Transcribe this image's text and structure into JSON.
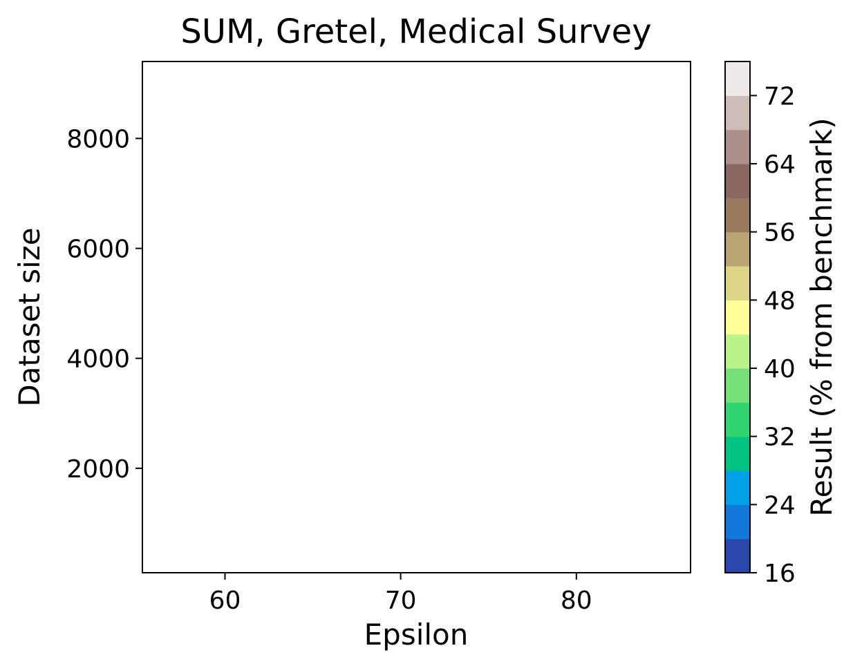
{
  "chart_data": {
    "type": "heatmap",
    "title": "SUM, Gretel, Medical Survey",
    "xlabel": "Epsilon",
    "ylabel": "Dataset size",
    "xlim": [
      55.3,
      86.5
    ],
    "ylim": [
      100,
      9400
    ],
    "xticks": [
      60,
      70,
      80
    ],
    "yticks": [
      2000,
      4000,
      6000,
      8000
    ],
    "grid": false,
    "plot_area": "empty",
    "colorbar": {
      "label": "Result (% from benchmark)",
      "range": [
        16,
        76
      ],
      "levels": [
        16,
        20,
        24,
        28,
        32,
        36,
        40,
        44,
        48,
        52,
        56,
        60,
        64,
        68,
        72,
        76
      ],
      "colors": [
        "#2a48ac",
        "#1278dc",
        "#00a1e6",
        "#00c480",
        "#30d570",
        "#75e07a",
        "#bbf28b",
        "#ffff99",
        "#ded485",
        "#b9a572",
        "#997a5e",
        "#8a6760",
        "#ab918a",
        "#cdbcb8",
        "#ede9e8"
      ],
      "ticks": [
        16,
        24,
        32,
        40,
        48,
        56,
        64,
        72
      ]
    }
  }
}
